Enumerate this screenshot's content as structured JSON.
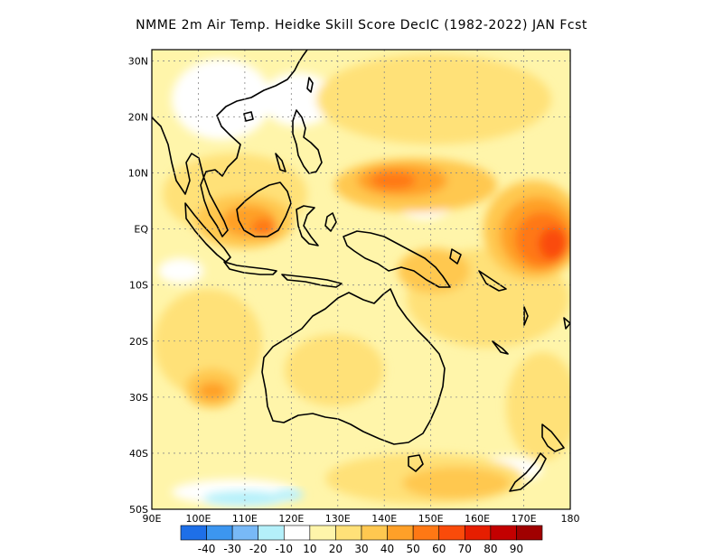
{
  "title": "NMME  2m Air Temp. Heidke Skill Score DecIC (1982-2022) JAN Fcst",
  "map": {
    "lon_range": [
      90,
      180
    ],
    "lat_range": [
      -50,
      32
    ],
    "lat_ticks": [
      {
        "value": 30,
        "label": "30N"
      },
      {
        "value": 20,
        "label": "20N"
      },
      {
        "value": 10,
        "label": "10N"
      },
      {
        "value": 0,
        "label": "EQ"
      },
      {
        "value": -10,
        "label": "10S"
      },
      {
        "value": -20,
        "label": "20S"
      },
      {
        "value": -30,
        "label": "30S"
      },
      {
        "value": -40,
        "label": "40S"
      },
      {
        "value": -50,
        "label": "50S"
      }
    ],
    "lon_ticks": [
      {
        "value": 90,
        "label": "90E"
      },
      {
        "value": 100,
        "label": "100E"
      },
      {
        "value": 110,
        "label": "110E"
      },
      {
        "value": 120,
        "label": "120E"
      },
      {
        "value": 130,
        "label": "130E"
      },
      {
        "value": 140,
        "label": "140E"
      },
      {
        "value": 150,
        "label": "150E"
      },
      {
        "value": 160,
        "label": "160E"
      },
      {
        "value": 170,
        "label": "170E"
      },
      {
        "value": 180,
        "label": "180"
      }
    ],
    "grid": true
  },
  "colorbar": {
    "colors": [
      "#1e6fe8",
      "#3c96f0",
      "#78b9f7",
      "#b4f0fa",
      "#ffffff",
      "#fff5aa",
      "#ffe178",
      "#ffc850",
      "#ffa028",
      "#ff7814",
      "#fa4b0a",
      "#e61e00",
      "#c30000",
      "#a00000"
    ],
    "labels": [
      "-40",
      "-30",
      "-20",
      "-10",
      "10",
      "20",
      "30",
      "40",
      "50",
      "60",
      "70",
      "80",
      "90"
    ]
  }
}
